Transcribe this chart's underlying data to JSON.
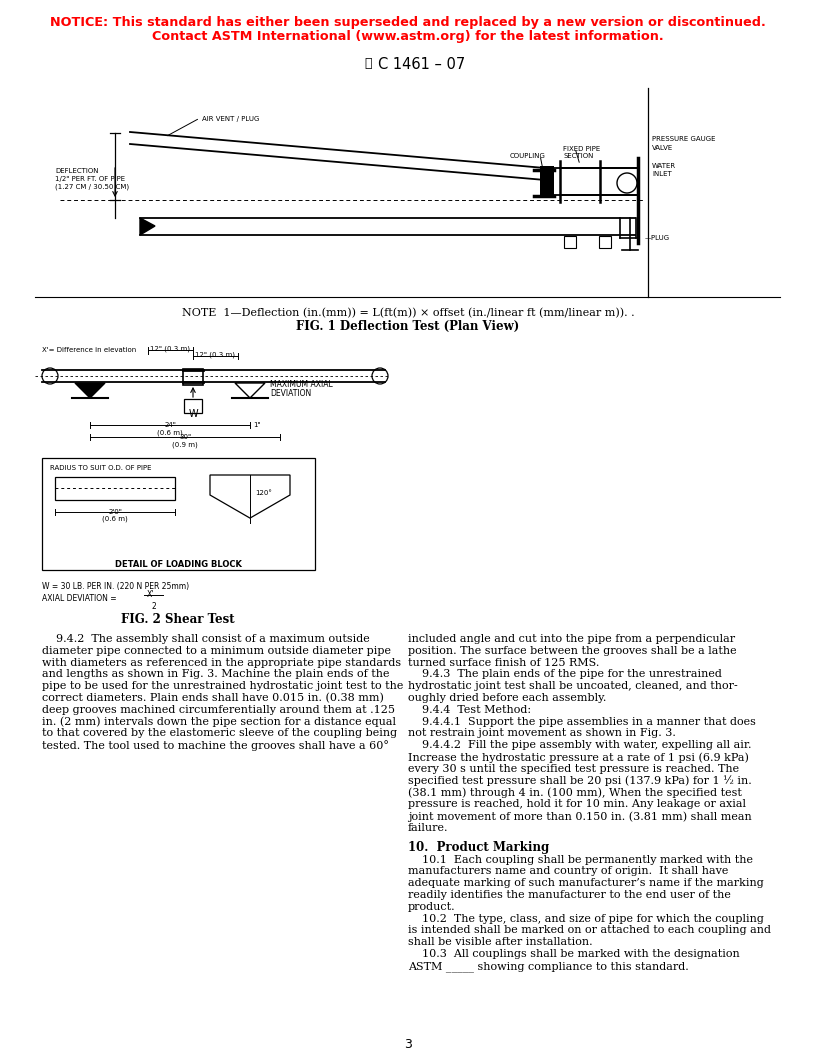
{
  "notice_line1": "NOTICE: This standard has either been superseded and replaced by a new version or discontinued.",
  "notice_line2": "Contact ASTM International (www.astm.org) for the latest information.",
  "notice_color": "#FF0000",
  "header_text": "C 1461 – 07",
  "fig1_note": "NOTE  1—Deflection (in.(mm)) = L(ft(m)) × offset (in./linear ft (mm/linear m)). .",
  "fig1_caption": "FIG. 1 Deflection Test (Plan View)",
  "fig2_caption": "FIG. 2 Shear Test",
  "page_number": "3",
  "left_col_body": [
    "    9.4.2  The assembly shall consist of a maximum outside",
    "diameter pipe connected to a minimum outside diameter pipe",
    "with diameters as referenced in the appropriate pipe standards",
    "and lengths as shown in Fig. 3. Machine the plain ends of the",
    "pipe to be used for the unrestrained hydrostatic joint test to the",
    "correct diameters. Plain ends shall have 0.015 in. (0.38 mm)",
    "deep grooves machined circumferentially around them at .125",
    "in. (2 mm) intervals down the pipe section for a distance equal",
    "to that covered by the elastomeric sleeve of the coupling being",
    "tested. The tool used to machine the grooves shall have a 60°"
  ],
  "right_col_body": [
    "included angle and cut into the pipe from a perpendicular",
    "position. The surface between the grooves shall be a lathe",
    "turned surface finish of 125 RMS.",
    "    9.4.3  The plain ends of the pipe for the unrestrained",
    "hydrostatic joint test shall be uncoated, cleaned, and thor-",
    "oughly dried before each assembly.",
    "    9.4.4  Test Method:",
    "    9.4.4.1  Support the pipe assemblies in a manner that does",
    "not restrain joint movement as shown in Fig. 3.",
    "    9.4.4.2  Fill the pipe assembly with water, expelling all air.",
    "Increase the hydrostatic pressure at a rate of 1 psi (6.9 kPa)",
    "every 30 s until the specified test pressure is reached. The",
    "specified test pressure shall be 20 psi (137.9 kPa) for 1 ½ in.",
    "(38.1 mm) through 4 in. (100 mm), When the specified test",
    "pressure is reached, hold it for 10 min. Any leakage or axial",
    "joint movement of more than 0.150 in. (3.81 mm) shall mean",
    "failure."
  ],
  "section10_title": "10.  Product Marking",
  "section10_body": [
    "    10.1  Each coupling shall be permanently marked with the",
    "manufacturers name and country of origin.  It shall have",
    "adequate marking of such manufacturer’s name if the marking",
    "readily identifies the manufacturer to the end user of the",
    "product.",
    "    10.2  The type, class, and size of pipe for which the coupling",
    "is intended shall be marked on or attached to each coupling and",
    "shall be visible after installation.",
    "    10.3  All couplings shall be marked with the designation",
    "ASTM _____ showing compliance to this standard."
  ],
  "background_color": "#FFFFFF",
  "text_color": "#000000"
}
